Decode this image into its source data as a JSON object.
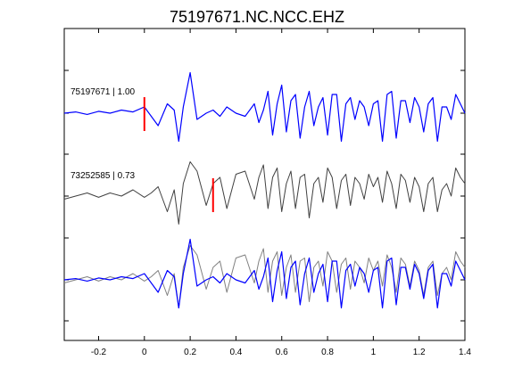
{
  "chart_data": {
    "type": "line",
    "title": "75197671.NC.NCC.EHZ",
    "xlabel": "",
    "ylabel": "",
    "xlim": [
      -0.35,
      1.4
    ],
    "x_ticks": [
      -0.2,
      0,
      0.2,
      0.4,
      0.6,
      0.8,
      1,
      1.2,
      1.4
    ],
    "x_tick_labels": [
      "-0.2",
      "0",
      "0.2",
      "0.4",
      "0.6",
      "0.8",
      "1",
      "1.2",
      "1.4"
    ],
    "grid": false,
    "traces": [
      {
        "label": "75197671 | 1.00",
        "color": "#0000ff",
        "pick_time": 0.0,
        "pick_color": "#ff0000",
        "x": [
          -0.35,
          -0.3,
          -0.25,
          -0.2,
          -0.15,
          -0.1,
          -0.05,
          0.0,
          0.03,
          0.06,
          0.1,
          0.13,
          0.15,
          0.17,
          0.2,
          0.23,
          0.27,
          0.3,
          0.33,
          0.36,
          0.4,
          0.44,
          0.48,
          0.5,
          0.52,
          0.54,
          0.56,
          0.58,
          0.6,
          0.62,
          0.64,
          0.66,
          0.68,
          0.7,
          0.72,
          0.74,
          0.76,
          0.78,
          0.8,
          0.82,
          0.84,
          0.86,
          0.88,
          0.9,
          0.92,
          0.94,
          0.96,
          0.98,
          1.0,
          1.02,
          1.04,
          1.06,
          1.08,
          1.1,
          1.12,
          1.14,
          1.16,
          1.18,
          1.2,
          1.22,
          1.24,
          1.26,
          1.28,
          1.3,
          1.32,
          1.34,
          1.36,
          1.38,
          1.4
        ],
        "y": [
          0.0,
          0.02,
          -0.02,
          0.03,
          0.0,
          0.05,
          0.02,
          0.1,
          -0.05,
          -0.2,
          0.15,
          0.05,
          -0.45,
          0.1,
          0.65,
          -0.1,
          0.0,
          0.05,
          -0.05,
          0.1,
          0.0,
          -0.05,
          0.15,
          -0.15,
          0.05,
          0.35,
          -0.35,
          0.15,
          0.45,
          -0.3,
          0.2,
          0.3,
          -0.4,
          0.1,
          0.35,
          -0.2,
          0.1,
          0.25,
          -0.35,
          0.3,
          0.3,
          -0.45,
          0.15,
          0.25,
          -0.1,
          0.2,
          0.1,
          -0.2,
          0.15,
          0.2,
          -0.45,
          0.3,
          0.35,
          -0.4,
          0.2,
          0.2,
          -0.15,
          0.25,
          0.1,
          -0.3,
          0.15,
          0.25,
          -0.45,
          0.1,
          0.1,
          -0.1,
          0.3,
          0.15,
          0.0
        ]
      },
      {
        "label": "73252585 | 0.73",
        "color": "#404040",
        "pick_time": 0.3,
        "pick_color": "#ff0000",
        "x": [
          -0.35,
          -0.3,
          -0.25,
          -0.2,
          -0.15,
          -0.1,
          -0.05,
          0.0,
          0.03,
          0.06,
          0.1,
          0.13,
          0.15,
          0.17,
          0.2,
          0.23,
          0.27,
          0.3,
          0.33,
          0.36,
          0.4,
          0.44,
          0.48,
          0.5,
          0.52,
          0.54,
          0.56,
          0.58,
          0.6,
          0.62,
          0.64,
          0.66,
          0.68,
          0.7,
          0.72,
          0.74,
          0.76,
          0.78,
          0.8,
          0.82,
          0.84,
          0.86,
          0.88,
          0.9,
          0.92,
          0.94,
          0.96,
          0.98,
          1.0,
          1.02,
          1.04,
          1.06,
          1.08,
          1.1,
          1.12,
          1.14,
          1.16,
          1.18,
          1.2,
          1.22,
          1.24,
          1.26,
          1.28,
          1.3,
          1.32,
          1.34,
          1.36,
          1.38,
          1.4
        ],
        "y": [
          -0.05,
          0.0,
          0.05,
          -0.02,
          0.05,
          0.0,
          0.1,
          -0.02,
          0.05,
          0.15,
          -0.25,
          0.1,
          -0.45,
          0.2,
          0.55,
          0.4,
          -0.15,
          0.2,
          0.3,
          -0.2,
          0.35,
          0.4,
          -0.05,
          0.3,
          0.5,
          -0.2,
          0.3,
          0.45,
          -0.25,
          0.2,
          0.4,
          -0.2,
          0.3,
          0.35,
          -0.35,
          0.2,
          0.3,
          -0.1,
          0.45,
          0.3,
          -0.2,
          0.25,
          0.35,
          -0.15,
          0.3,
          0.2,
          -0.05,
          0.35,
          0.15,
          0.3,
          -0.1,
          0.4,
          0.2,
          -0.2,
          0.35,
          0.25,
          -0.1,
          0.3,
          0.15,
          -0.25,
          0.2,
          0.3,
          -0.25,
          0.1,
          0.2,
          0.0,
          0.45,
          0.3,
          0.2
        ]
      }
    ],
    "overlay": {
      "description_free": true,
      "colors": [
        "#808080",
        "#0000ff"
      ]
    }
  }
}
